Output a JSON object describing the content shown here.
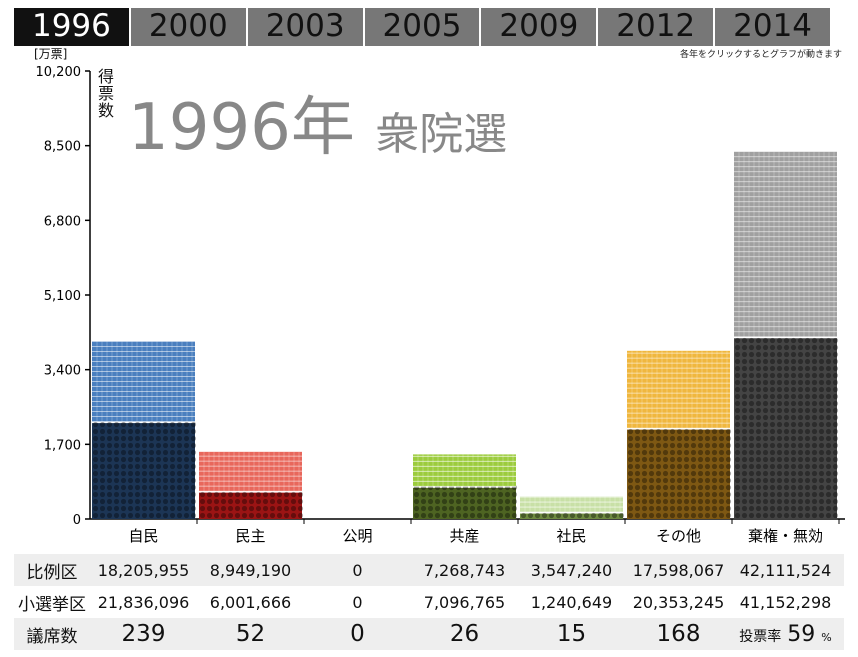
{
  "tabs": [
    "1996",
    "2000",
    "2003",
    "2005",
    "2009",
    "2012",
    "2014"
  ],
  "active_tab": "1996",
  "hint": "各年をクリックするとグラフが動きます",
  "title_year": "1996年",
  "title_sub": "衆院選",
  "chart_data": {
    "type": "bar",
    "y_unit": "[万票]",
    "ylabel": "得票数",
    "yticks": [
      "0",
      "1,700",
      "3,400",
      "5,100",
      "6,800",
      "8,500",
      "10,200"
    ],
    "ylim": [
      0,
      10200
    ],
    "categories": [
      "自民",
      "民主",
      "公明",
      "共産",
      "社民",
      "その他",
      "棄権・無効"
    ],
    "series": [
      {
        "name": "比例区",
        "values": [
          1820.6,
          894.9,
          0,
          726.9,
          354.7,
          1759.8,
          4211.2
        ]
      },
      {
        "name": "小選挙区",
        "values": [
          2183.6,
          600.2,
          0,
          709.7,
          124.1,
          2035.3,
          4115.2
        ]
      }
    ],
    "colors": {
      "prop": [
        "#4a7fbf",
        "#e8675c",
        "#b0b0b0",
        "#9ccc3d",
        "#c8e0a6",
        "#f0b73e",
        "#a0a0a0"
      ],
      "single": [
        "#1c3555",
        "#9b1414",
        "#555555",
        "#4e6422",
        "#6e8a40",
        "#7e5813",
        "#444444"
      ]
    }
  },
  "table": {
    "rows": [
      {
        "label": "比例区",
        "values": [
          "18,205,955",
          "8,949,190",
          "0",
          "7,268,743",
          "3,547,240",
          "17,598,067",
          "42,111,524"
        ]
      },
      {
        "label": "小選挙区",
        "values": [
          "21,836,096",
          "6,001,666",
          "0",
          "7,096,765",
          "1,240,649",
          "20,353,245",
          "41,152,298"
        ]
      }
    ],
    "seats_label": "議席数",
    "seats": [
      "239",
      "52",
      "0",
      "26",
      "15",
      "168"
    ],
    "turnout_label": "投票率",
    "turnout_value": "59",
    "turnout_unit": "%"
  }
}
